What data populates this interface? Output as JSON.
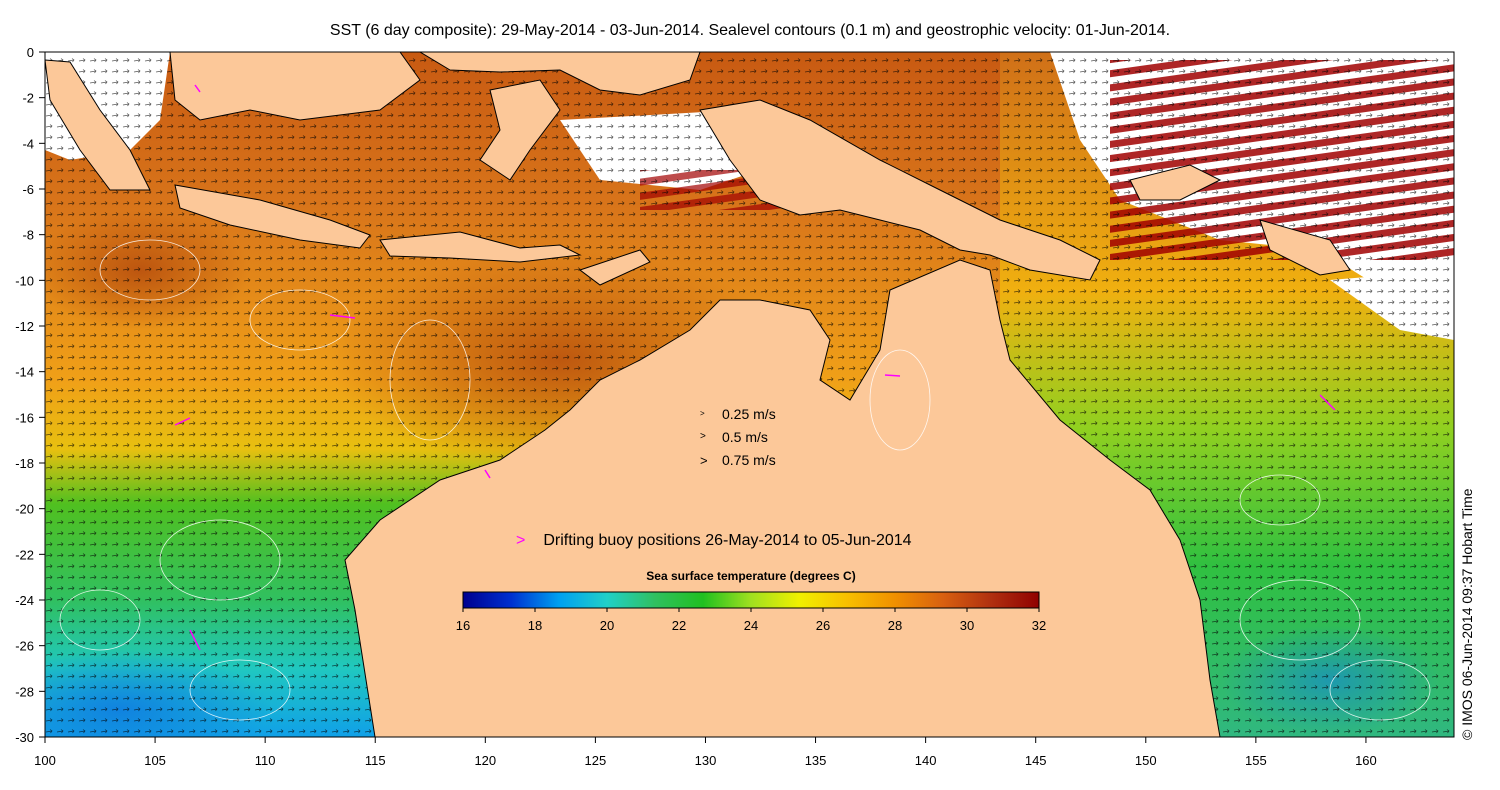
{
  "title": "SST (6 day composite): 29-May-2014 - 03-Jun-2014. Sealevel contours (0.1 m) and geostrophic velocity: 01-Jun-2014.",
  "credit": "© IMOS 06-Jun-2014 09:37 Hobart Time",
  "velocity_legend": [
    {
      "label": "0.25 m/s",
      "speed": 0.25
    },
    {
      "label": "0.5 m/s",
      "speed": 0.5
    },
    {
      "label": "0.75 m/s",
      "speed": 0.75
    }
  ],
  "buoy_legend": {
    "marker": ">",
    "label": "Drifting buoy positions 26-May-2014 to 05-Jun-2014",
    "color": "#ff00ff"
  },
  "colorbar": {
    "title": "Sea surface temperature (degrees C)",
    "min": 16,
    "max": 32,
    "ticks": [
      "16",
      "18",
      "20",
      "22",
      "24",
      "26",
      "28",
      "30",
      "32"
    ],
    "stops": [
      "#00008f",
      "#0030d0",
      "#00a0f0",
      "#20d0c8",
      "#30c060",
      "#20c020",
      "#a0e020",
      "#f0f000",
      "#f8c000",
      "#f09000",
      "#d86010",
      "#b03010",
      "#900000"
    ]
  },
  "x_axis": {
    "ticks": [
      "100",
      "105",
      "110",
      "115",
      "120",
      "125",
      "130",
      "135",
      "140",
      "145",
      "150",
      "155",
      "160"
    ]
  },
  "y_axis": {
    "ticks": [
      "0",
      "-2",
      "-4",
      "-6",
      "-8",
      "-10",
      "-12",
      "-14",
      "-16",
      "-18",
      "-20",
      "-22",
      "-24",
      "-26",
      "-28",
      "-30"
    ]
  },
  "colors": {
    "land": "#fcc899",
    "frame": "#000000"
  }
}
